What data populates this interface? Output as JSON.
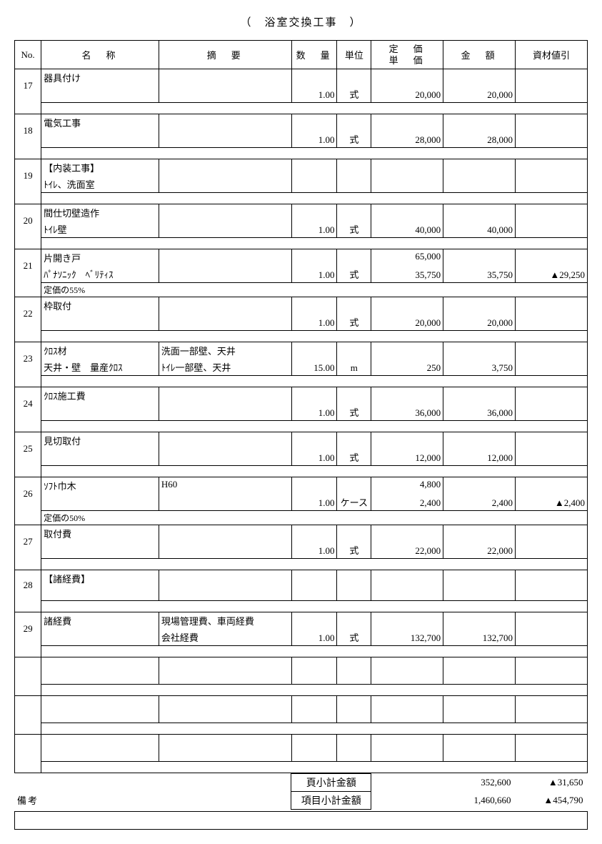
{
  "title": "（　浴室交換工事　）",
  "headers": {
    "no": "No.",
    "name": "名　称",
    "desc": "摘　要",
    "qty": "数　量",
    "unit": "単位",
    "price_top": "定　価",
    "price_bot": "単　価",
    "amount": "金　額",
    "discount": "資材値引"
  },
  "rows": [
    {
      "no": "17",
      "n1": "器具付け",
      "n2": "",
      "d1": "",
      "d2": "",
      "qty": "1.00",
      "unit": "式",
      "p1": "",
      "p2": "20,000",
      "amt": "20,000",
      "disc": "",
      "note": ""
    },
    {
      "no": "18",
      "n1": "電気工事",
      "n2": "",
      "d1": "",
      "d2": "",
      "qty": "1.00",
      "unit": "式",
      "p1": "",
      "p2": "28,000",
      "amt": "28,000",
      "disc": "",
      "note": ""
    },
    {
      "no": "19",
      "n1": "【内装工事】",
      "n2": "ﾄｲﾚ、洗面室",
      "d1": "",
      "d2": "",
      "qty": "",
      "unit": "",
      "p1": "",
      "p2": "",
      "amt": "",
      "disc": "",
      "note": ""
    },
    {
      "no": "20",
      "n1": "間仕切壁造作",
      "n2": "ﾄｲﾚ壁",
      "d1": "",
      "d2": "",
      "qty": "1.00",
      "unit": "式",
      "p1": "",
      "p2": "40,000",
      "amt": "40,000",
      "disc": "",
      "note": ""
    },
    {
      "no": "21",
      "n1": "片開き戸",
      "n2": "ﾊﾟﾅｿﾆｯｸ　ﾍﾞﾘﾃｨｽ",
      "d1": "",
      "d2": "",
      "qty": "1.00",
      "unit": "式",
      "p1": "65,000",
      "p2": "35,750",
      "amt": "35,750",
      "disc": "▲29,250",
      "note": "定価の55%"
    },
    {
      "no": "22",
      "n1": "枠取付",
      "n2": "",
      "d1": "",
      "d2": "",
      "qty": "1.00",
      "unit": "式",
      "p1": "",
      "p2": "20,000",
      "amt": "20,000",
      "disc": "",
      "note": ""
    },
    {
      "no": "23",
      "n1": "ｸﾛｽ材",
      "n2": "天井・壁　量産ｸﾛｽ",
      "d1": "洗面一部壁、天井",
      "d2": "ﾄｲﾚ一部壁、天井",
      "qty": "15.00",
      "unit": "m",
      "p1": "",
      "p2": "250",
      "amt": "3,750",
      "disc": "",
      "note": ""
    },
    {
      "no": "24",
      "n1": "ｸﾛｽ施工費",
      "n2": "",
      "d1": "",
      "d2": "",
      "qty": "1.00",
      "unit": "式",
      "p1": "",
      "p2": "36,000",
      "amt": "36,000",
      "disc": "",
      "note": ""
    },
    {
      "no": "25",
      "n1": "見切取付",
      "n2": "",
      "d1": "",
      "d2": "",
      "qty": "1.00",
      "unit": "式",
      "p1": "",
      "p2": "12,000",
      "amt": "12,000",
      "disc": "",
      "note": ""
    },
    {
      "no": "26",
      "n1": "ｿﾌﾄ巾木",
      "n2": "",
      "d1": "H60",
      "d2": "",
      "qty": "1.00",
      "unit": "ケース",
      "p1": "4,800",
      "p2": "2,400",
      "amt": "2,400",
      "disc": "▲2,400",
      "note": "定価の50%"
    },
    {
      "no": "27",
      "n1": "取付費",
      "n2": "",
      "d1": "",
      "d2": "",
      "qty": "1.00",
      "unit": "式",
      "p1": "",
      "p2": "22,000",
      "amt": "22,000",
      "disc": "",
      "note": ""
    },
    {
      "no": "28",
      "n1": "【諸経費】",
      "n2": "",
      "d1": "",
      "d2": "",
      "qty": "",
      "unit": "",
      "p1": "",
      "p2": "",
      "amt": "",
      "disc": "",
      "note": ""
    },
    {
      "no": "29",
      "n1": "諸経費",
      "n2": "",
      "d1": "現場管理費、車両経費",
      "d2": "会社経費",
      "qty": "1.00",
      "unit": "式",
      "p1": "",
      "p2": "132,700",
      "amt": "132,700",
      "disc": "",
      "note": ""
    },
    {
      "no": "",
      "n1": "",
      "n2": "",
      "d1": "",
      "d2": "",
      "qty": "",
      "unit": "",
      "p1": "",
      "p2": "",
      "amt": "",
      "disc": "",
      "note": ""
    },
    {
      "no": "",
      "n1": "",
      "n2": "",
      "d1": "",
      "d2": "",
      "qty": "",
      "unit": "",
      "p1": "",
      "p2": "",
      "amt": "",
      "disc": "",
      "note": ""
    },
    {
      "no": "",
      "n1": "",
      "n2": "",
      "d1": "",
      "d2": "",
      "qty": "",
      "unit": "",
      "p1": "",
      "p2": "",
      "amt": "",
      "disc": "",
      "note": ""
    }
  ],
  "summary": {
    "page_subtotal_label": "頁小計金額",
    "page_subtotal_amount": "352,600",
    "page_subtotal_discount": "▲31,650",
    "item_subtotal_label": "項目小計金額",
    "item_subtotal_amount": "1,460,660",
    "item_subtotal_discount": "▲454,790"
  },
  "remarks_label": "備考"
}
